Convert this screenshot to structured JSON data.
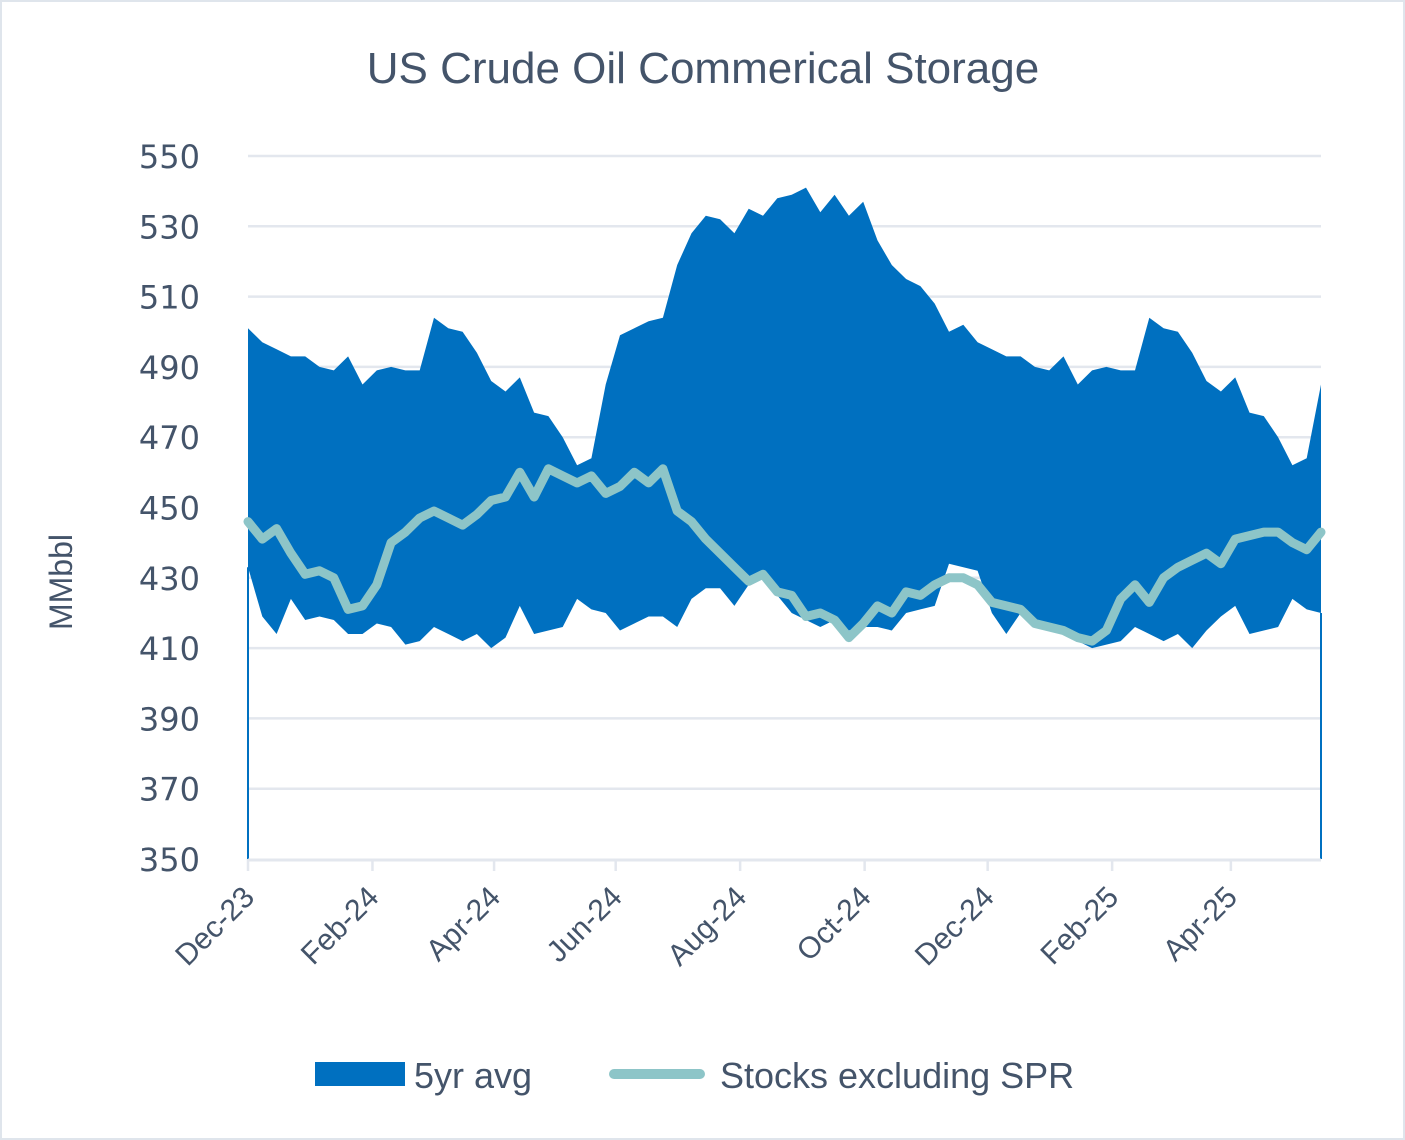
{
  "chart_data": {
    "type": "area",
    "title": "US Crude Oil Commerical Storage",
    "xlabel": "",
    "ylabel": "MMbbl",
    "ylim": [
      350,
      550
    ],
    "yticks": [
      "550",
      "530",
      "510",
      "490",
      "470",
      "450",
      "430",
      "410",
      "390",
      "370",
      "350"
    ],
    "ytick_values": [
      550,
      530,
      510,
      490,
      470,
      450,
      430,
      410,
      390,
      370,
      350
    ],
    "xticks": [
      "Dec-23",
      "Feb-24",
      "Apr-24",
      "Jun-24",
      "Aug-24",
      "Oct-24",
      "Dec-24",
      "Feb-25",
      "Apr-25"
    ],
    "xtick_weeks": [
      0,
      8.7,
      17.2,
      25.7,
      34.4,
      43.1,
      51.7,
      60.4,
      68.7
    ],
    "n_weeks": 76,
    "grid": true,
    "legend_position": "bottom",
    "colors": {
      "band": "#0070c0",
      "line": "#8dc5c8",
      "grid": "#e3e7ee",
      "text": "#44546a"
    },
    "series": [
      {
        "name": "5yr avg",
        "kind": "band",
        "upper": [
          501,
          497,
          495,
          493,
          493,
          490,
          489,
          493,
          485,
          489,
          490,
          489,
          489,
          504,
          501,
          500,
          494,
          486,
          483,
          487,
          477,
          476,
          470,
          462,
          464,
          485,
          499,
          501,
          503,
          504,
          519,
          528,
          533,
          532,
          528,
          535,
          533,
          538,
          539,
          541,
          534,
          539,
          533,
          537,
          526,
          519,
          515,
          513,
          508,
          500,
          502,
          497,
          495,
          493,
          493,
          490,
          489,
          493,
          485,
          489,
          490,
          489,
          489,
          504,
          501,
          500,
          494,
          486,
          483,
          487,
          477,
          476,
          470,
          462,
          464,
          485
        ],
        "lower": [
          433,
          419,
          414,
          424,
          418,
          419,
          418,
          414,
          414,
          417,
          416,
          411,
          412,
          416,
          414,
          412,
          414,
          410,
          413,
          422,
          414,
          415,
          416,
          424,
          421,
          420,
          415,
          417,
          419,
          419,
          416,
          424,
          427,
          427,
          422,
          428,
          432,
          425,
          420,
          418,
          416,
          418,
          415,
          416,
          416,
          415,
          420,
          421,
          422,
          434,
          433,
          432,
          420,
          414,
          420,
          417,
          416,
          414,
          412,
          410,
          411,
          412,
          416,
          414,
          412,
          414,
          410,
          415,
          419,
          422,
          414,
          415,
          416,
          424,
          421,
          420
        ]
      },
      {
        "name": "Stocks excluding SPR",
        "kind": "line",
        "values": [
          446,
          441,
          444,
          437,
          431,
          432,
          430,
          421,
          422,
          428,
          440,
          443,
          447,
          449,
          447,
          445,
          448,
          452,
          453,
          460,
          453,
          461,
          459,
          457,
          459,
          454,
          456,
          460,
          457,
          461,
          449,
          446,
          441,
          437,
          433,
          429,
          431,
          426,
          425,
          419,
          420,
          418,
          413,
          417,
          422,
          420,
          426,
          425,
          428,
          430,
          430,
          428,
          423,
          422,
          421,
          417,
          416,
          415,
          413,
          412,
          415,
          424,
          428,
          423,
          430,
          433,
          435,
          437,
          434,
          441,
          442,
          443,
          443,
          440,
          438,
          443
        ]
      }
    ]
  },
  "legend": {
    "items": [
      "5yr avg",
      "Stocks excluding SPR"
    ]
  }
}
